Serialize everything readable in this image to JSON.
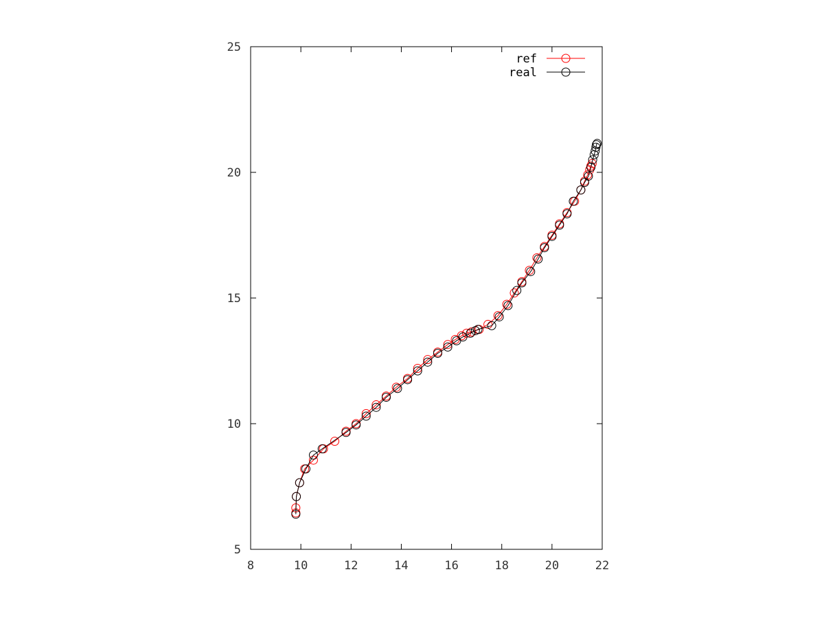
{
  "chart_data": {
    "type": "line",
    "title": "",
    "xlabel": "",
    "ylabel": "",
    "xlim": [
      8,
      22
    ],
    "ylim": [
      5,
      25
    ],
    "xticks": [
      8,
      10,
      12,
      14,
      16,
      18,
      20,
      22
    ],
    "yticks": [
      5,
      10,
      15,
      20,
      25
    ],
    "xtick_labels": [
      "8",
      "10",
      "12",
      "14",
      "16",
      "18",
      "20",
      "22"
    ],
    "ytick_labels": [
      "5",
      "10",
      "15",
      "20",
      "25"
    ],
    "grid": false,
    "legend_position": "top-right",
    "marker": "circle",
    "series": [
      {
        "name": "ref",
        "color": "#ff0000",
        "points": [
          [
            9.8,
            6.45
          ],
          [
            9.8,
            6.65
          ],
          [
            9.82,
            7.1
          ],
          [
            9.95,
            7.65
          ],
          [
            10.15,
            8.2
          ],
          [
            10.5,
            8.55
          ],
          [
            10.9,
            9.0
          ],
          [
            11.35,
            9.3
          ],
          [
            11.8,
            9.7
          ],
          [
            12.2,
            10.0
          ],
          [
            12.6,
            10.4
          ],
          [
            13.0,
            10.75
          ],
          [
            13.4,
            11.1
          ],
          [
            13.8,
            11.45
          ],
          [
            14.25,
            11.8
          ],
          [
            14.65,
            12.2
          ],
          [
            15.05,
            12.55
          ],
          [
            15.45,
            12.85
          ],
          [
            15.85,
            13.15
          ],
          [
            16.15,
            13.35
          ],
          [
            16.4,
            13.5
          ],
          [
            16.6,
            13.6
          ],
          [
            16.8,
            13.65
          ],
          [
            17.1,
            13.75
          ],
          [
            17.45,
            13.95
          ],
          [
            17.85,
            14.3
          ],
          [
            18.2,
            14.75
          ],
          [
            18.5,
            15.2
          ],
          [
            18.8,
            15.65
          ],
          [
            19.1,
            16.1
          ],
          [
            19.4,
            16.6
          ],
          [
            19.7,
            17.05
          ],
          [
            20.0,
            17.5
          ],
          [
            20.3,
            17.95
          ],
          [
            20.6,
            18.4
          ],
          [
            20.9,
            18.85
          ],
          [
            21.15,
            19.3
          ],
          [
            21.3,
            19.65
          ],
          [
            21.42,
            19.9
          ],
          [
            21.5,
            20.1
          ],
          [
            21.55,
            20.25
          ],
          [
            21.6,
            20.35
          ]
        ]
      },
      {
        "name": "real",
        "color": "#000000",
        "points": [
          [
            9.8,
            6.4
          ],
          [
            9.82,
            7.1
          ],
          [
            9.95,
            7.65
          ],
          [
            10.2,
            8.2
          ],
          [
            10.5,
            8.75
          ],
          [
            10.85,
            9.0
          ],
          [
            11.8,
            9.65
          ],
          [
            12.2,
            9.95
          ],
          [
            12.6,
            10.3
          ],
          [
            13.0,
            10.65
          ],
          [
            13.4,
            11.05
          ],
          [
            13.85,
            11.4
          ],
          [
            14.25,
            11.75
          ],
          [
            14.65,
            12.1
          ],
          [
            15.05,
            12.45
          ],
          [
            15.45,
            12.8
          ],
          [
            15.85,
            13.05
          ],
          [
            16.2,
            13.3
          ],
          [
            16.45,
            13.45
          ],
          [
            16.75,
            13.6
          ],
          [
            16.95,
            13.7
          ],
          [
            17.05,
            13.75
          ],
          [
            17.6,
            13.9
          ],
          [
            17.9,
            14.25
          ],
          [
            18.25,
            14.7
          ],
          [
            18.6,
            15.3
          ],
          [
            18.8,
            15.6
          ],
          [
            19.15,
            16.05
          ],
          [
            19.45,
            16.55
          ],
          [
            19.7,
            17.0
          ],
          [
            20.0,
            17.45
          ],
          [
            20.3,
            17.9
          ],
          [
            20.6,
            18.35
          ],
          [
            20.85,
            18.85
          ],
          [
            21.15,
            19.3
          ],
          [
            21.3,
            19.6
          ],
          [
            21.45,
            19.85
          ],
          [
            21.55,
            20.2
          ],
          [
            21.62,
            20.5
          ],
          [
            21.68,
            20.7
          ],
          [
            21.72,
            20.85
          ],
          [
            21.75,
            21.0
          ],
          [
            21.77,
            21.1
          ],
          [
            21.8,
            21.15
          ]
        ]
      }
    ]
  }
}
